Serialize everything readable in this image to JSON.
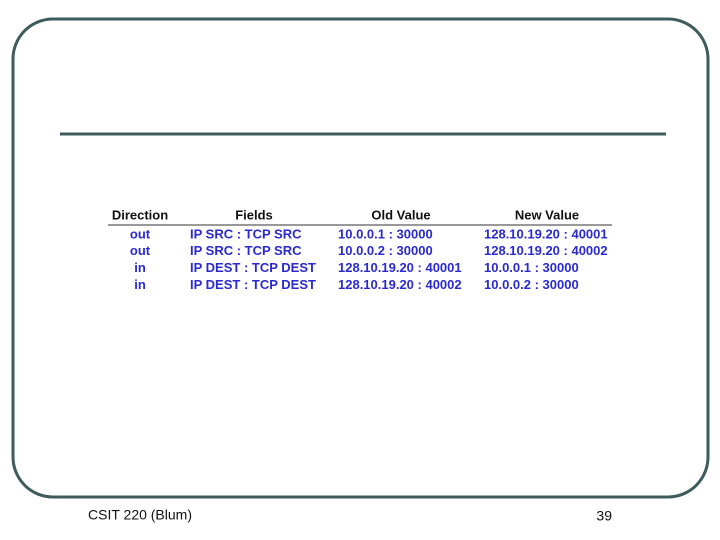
{
  "table": {
    "header": [
      "Direction",
      "Fields",
      "Old Value",
      "New Value"
    ],
    "rows": [
      [
        "out",
        "IP SRC : TCP SRC",
        "10.0.0.1 : 30000",
        "128.10.19.20 : 40001"
      ],
      [
        "out",
        "IP SRC : TCP SRC",
        "10.0.0.2 : 30000",
        "128.10.19.20 : 40002"
      ],
      [
        "in",
        "IP DEST : TCP DEST",
        "128.10.19.20 : 40001",
        "10.0.0.1 : 30000"
      ],
      [
        "in",
        "IP DEST : TCP DEST",
        "128.10.19.20 : 40002",
        "10.0.0.2 : 30000"
      ]
    ]
  },
  "footer": {
    "left": "CSIT 220 (Blum)",
    "right": "39"
  }
}
